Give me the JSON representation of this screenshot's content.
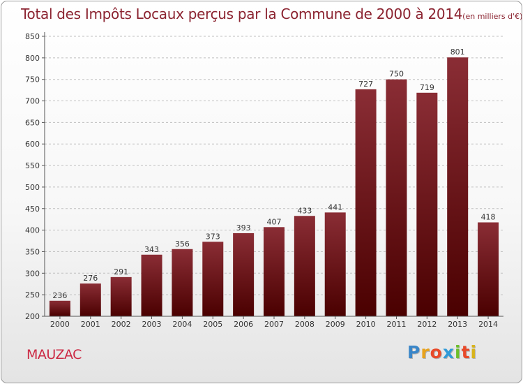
{
  "title": "Total des Impôts Locaux perçus par la Commune de 2000 à 2014",
  "title_unit": "(en milliers d'€)",
  "commune": "MAUZAC",
  "brand": {
    "text": "Proxiti",
    "letters": [
      "P",
      "r",
      "o",
      "x",
      "i",
      "t",
      "i"
    ],
    "colors": [
      "#3a86c8",
      "#e8a21c",
      "#e84a2a",
      "#2f9ad8",
      "#6cbf2a",
      "#e84a2a",
      "#d8b41c"
    ]
  },
  "colors": {
    "bar_top": "#8a2d35",
    "bar_bottom": "#4a0000",
    "axis": "#555555",
    "grid": "#c0c0c0",
    "title": "#8b2330"
  },
  "chart_data": {
    "type": "bar",
    "categories": [
      "2000",
      "2001",
      "2002",
      "2003",
      "2004",
      "2005",
      "2006",
      "2007",
      "2008",
      "2009",
      "2010",
      "2011",
      "2012",
      "2013",
      "2014"
    ],
    "values": [
      236,
      276,
      291,
      343,
      356,
      373,
      393,
      407,
      433,
      441,
      727,
      750,
      719,
      801,
      418
    ],
    "ylim": [
      200,
      850
    ],
    "yticks": [
      200,
      250,
      300,
      350,
      400,
      450,
      500,
      550,
      600,
      650,
      700,
      750,
      800,
      850
    ],
    "grid": "dashed horizontal",
    "data_labels": true
  }
}
